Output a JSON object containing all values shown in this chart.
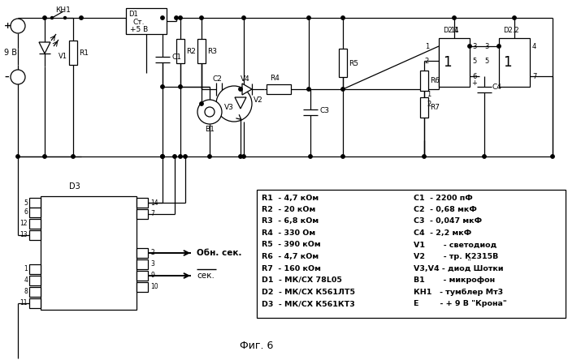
{
  "title": "Фиг. 6",
  "bg_color": "#ffffff",
  "legend_left": [
    "R1  - 4,7 кОм",
    "R2  - 20 кОм",
    "R3  - 6,8 кОм",
    "R4  - 330 Ом",
    "R5  - 390 кОм",
    "R6  - 4,7 кОм",
    "R7  - 160 кОм",
    "D1  - МК/СХ 78L05",
    "D2  - МК/СХ К561ЛТ5",
    "D3  - МК/СХ К561КТ3"
  ],
  "legend_right": [
    "C1  - 2200 пФ",
    "C2  - 0,68 мкФ",
    "C3  - 0,047 мкФ",
    "C4  - 2,2 мкФ",
    "V1       - светодиод",
    "V2       - тр. К̤2315В",
    "V3,V4 - диод Шотки",
    "B1       - микрофон",
    "КН1   - тумблер Мт3",
    "E        - + 9 В \"Крона\""
  ]
}
